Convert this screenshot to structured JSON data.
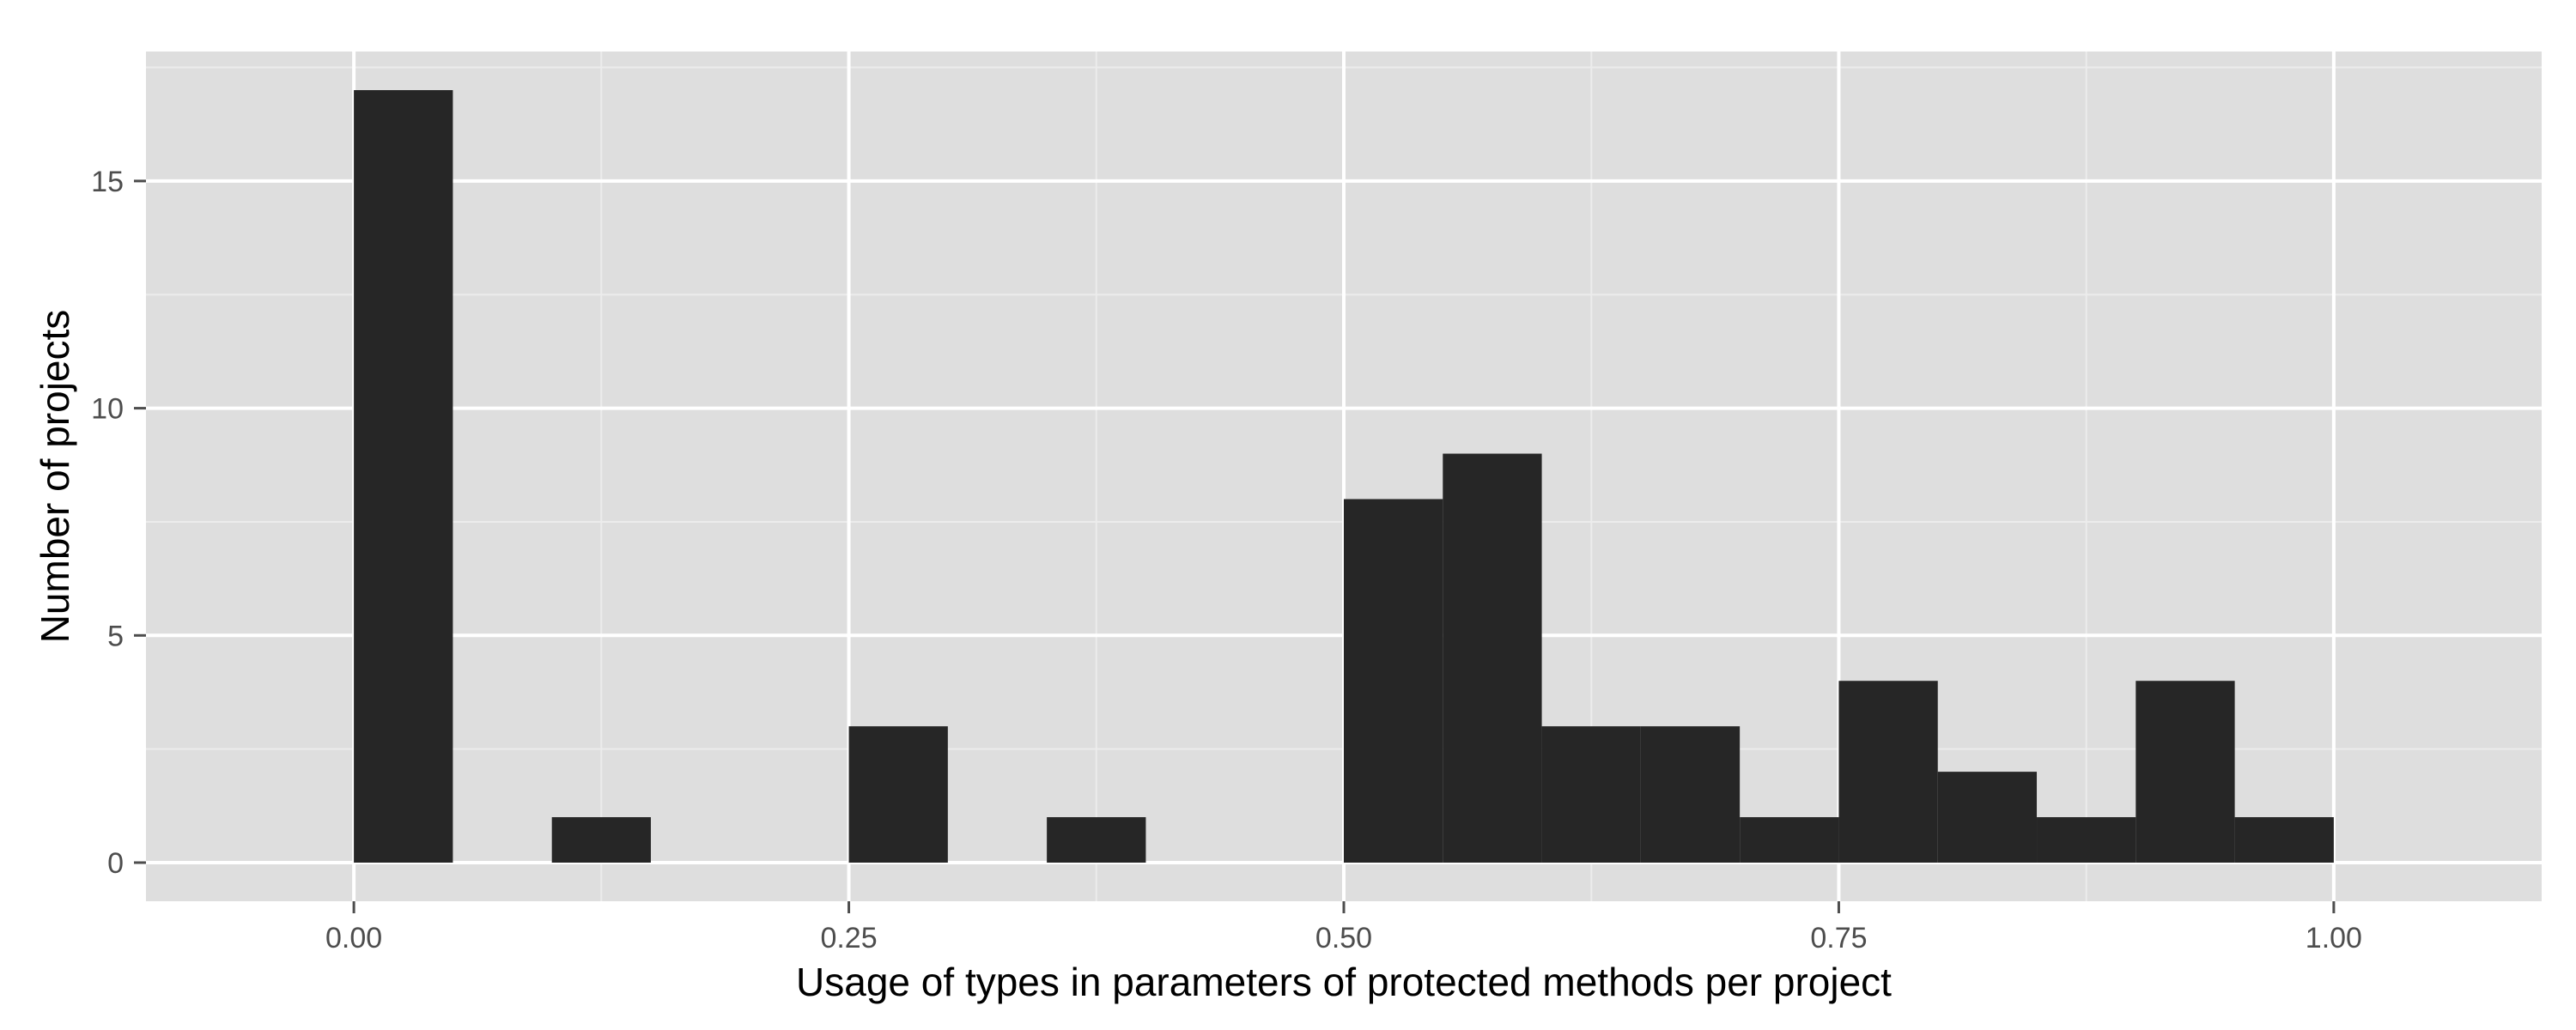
{
  "chart_data": {
    "type": "bar",
    "title": "",
    "xlabel": "Usage of types in parameters of protected methods per project",
    "ylabel": "Number of projects",
    "xlim": [
      -0.105,
      1.105
    ],
    "ylim": [
      -0.85,
      17.85
    ],
    "xticks": [
      0.0,
      0.25,
      0.5,
      0.75,
      1.0
    ],
    "xtick_labels": [
      "0.00",
      "0.25",
      "0.50",
      "0.75",
      "1.00"
    ],
    "yticks": [
      0,
      5,
      10,
      15
    ],
    "ytick_labels": [
      "0",
      "5",
      "10",
      "15"
    ],
    "grid": true,
    "legend": "none",
    "bin_width": 0.05,
    "bin_starts": [
      0.0,
      0.05,
      0.1,
      0.15,
      0.2,
      0.25,
      0.3,
      0.35,
      0.4,
      0.45,
      0.5,
      0.55,
      0.6,
      0.65,
      0.7,
      0.75,
      0.8,
      0.85,
      0.9,
      0.95
    ],
    "values": [
      17,
      0,
      1,
      0,
      0,
      3,
      0,
      1,
      0,
      0,
      8,
      9,
      3,
      3,
      1,
      4,
      2,
      1,
      4,
      1
    ],
    "colors": {
      "bar": "#262626",
      "panel": "#dedede",
      "grid_major": "#ffffff",
      "grid_minor": "#ececec"
    }
  }
}
